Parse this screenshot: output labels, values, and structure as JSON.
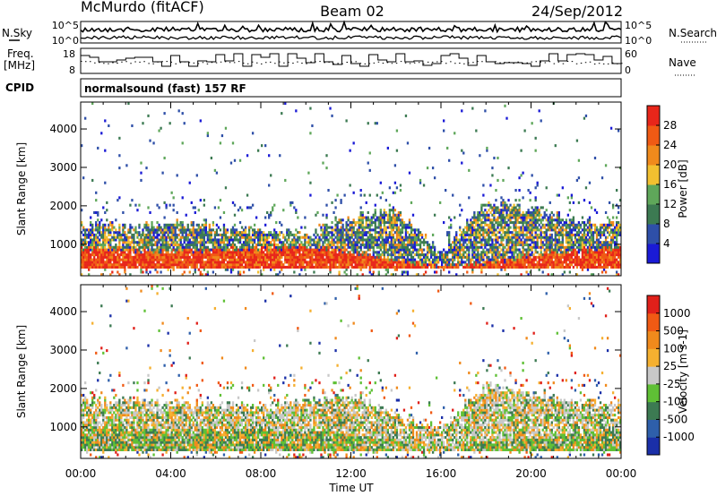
{
  "header": {
    "station": "McMurdo (fitACF)",
    "beam": "Beam 02",
    "date": "24/Sep/2012"
  },
  "status_panels": {
    "nsky_label": "N.Sky",
    "nsearch_label": "N.Search",
    "noise_ticks": [
      "10^5",
      "10^0"
    ],
    "freq_label_line1": "Freq.",
    "freq_label_line2": "[MHz]",
    "freq_ticks": [
      "18",
      "8"
    ],
    "nave_label": "Nave",
    "nave_ticks": [
      "60",
      "0"
    ],
    "cpid_label": "CPID",
    "cpid_text": "normalsound (fast) 157 RF"
  },
  "chart_data": [
    {
      "type": "heatmap",
      "name": "Power",
      "ylabel": "Slant Range [km]",
      "xlabel": "Time UT",
      "x_ticks": [
        "00:00",
        "04:00",
        "08:00",
        "12:00",
        "16:00",
        "20:00",
        "00:00"
      ],
      "y_ticks": [
        1000,
        2000,
        3000,
        4000
      ],
      "ylim": [
        180,
        4700
      ],
      "xlim_hours": [
        0,
        24
      ],
      "colorbar": {
        "label": "Power [dB]",
        "ticks": [
          "28",
          "24",
          "20",
          "16",
          "12",
          "8",
          "4"
        ],
        "colors": [
          "#1a1ad6",
          "#2e4fa8",
          "#3c7a52",
          "#5fa75a",
          "#f2c030",
          "#f08a1c",
          "#f05a14",
          "#e8261a"
        ]
      },
      "range_profile": [
        {
          "t": 0,
          "top": 1500,
          "core_top": 900
        },
        {
          "t": 2,
          "top": 1450,
          "core_top": 850
        },
        {
          "t": 4,
          "top": 1550,
          "core_top": 800
        },
        {
          "t": 6,
          "top": 1450,
          "core_top": 850
        },
        {
          "t": 8,
          "top": 1350,
          "core_top": 900
        },
        {
          "t": 10,
          "top": 1300,
          "core_top": 950
        },
        {
          "t": 12,
          "top": 1700,
          "core_top": 800
        },
        {
          "t": 14,
          "top": 1900,
          "core_top": 600
        },
        {
          "t": 16,
          "top": 800,
          "core_top": 400
        },
        {
          "t": 18,
          "top": 2100,
          "core_top": 500
        },
        {
          "t": 20,
          "top": 1900,
          "core_top": 700
        },
        {
          "t": 22,
          "top": 1600,
          "core_top": 850
        },
        {
          "t": 24,
          "top": 1600,
          "core_top": 900
        }
      ]
    },
    {
      "type": "heatmap",
      "name": "Velocity",
      "ylabel": "Slant Range [km]",
      "xlabel": "Time UT",
      "x_ticks": [
        "00:00",
        "04:00",
        "08:00",
        "12:00",
        "16:00",
        "20:00",
        "00:00"
      ],
      "y_ticks": [
        1000,
        2000,
        3000,
        4000
      ],
      "ylim": [
        180,
        4700
      ],
      "xlim_hours": [
        0,
        24
      ],
      "colorbar": {
        "label": "Velocity [m s-1]",
        "ticks": [
          "1000",
          "500",
          "100",
          "25",
          "-25",
          "-100",
          "-500",
          "-1000"
        ],
        "colors": [
          "#1a2fa8",
          "#2e5faa",
          "#3c7a52",
          "#5fc035",
          "#c8c8c8",
          "#f5b030",
          "#f08a1c",
          "#f05a14",
          "#e0201a"
        ]
      },
      "range_profile": [
        {
          "t": 0,
          "top": 1700,
          "core_top": 1000
        },
        {
          "t": 4,
          "top": 1650,
          "core_top": 900
        },
        {
          "t": 8,
          "top": 1500,
          "core_top": 950
        },
        {
          "t": 12,
          "top": 1800,
          "core_top": 800
        },
        {
          "t": 16,
          "top": 900,
          "core_top": 400
        },
        {
          "t": 18,
          "top": 2100,
          "core_top": 600
        },
        {
          "t": 22,
          "top": 1650,
          "core_top": 850
        },
        {
          "t": 24,
          "top": 1650,
          "core_top": 900
        }
      ]
    }
  ]
}
